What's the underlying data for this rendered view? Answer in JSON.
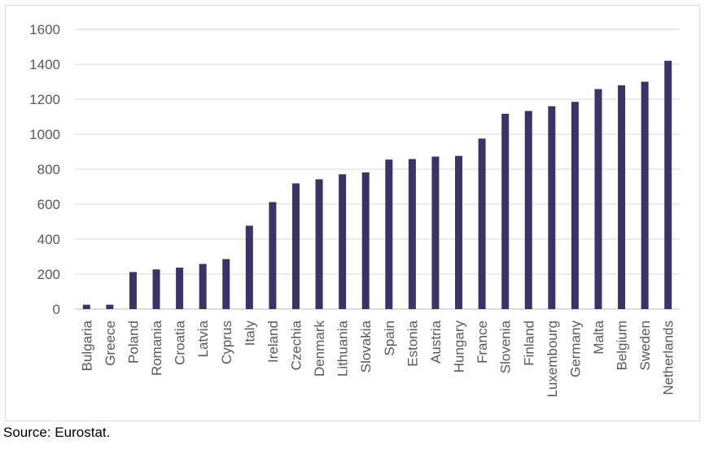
{
  "source_note": "Source: Eurostat.",
  "colors": {
    "bar": "#3b3368",
    "grid": "#d9d9d9",
    "axis": "#bfbfbf",
    "text": "#595959"
  },
  "chart_data": {
    "type": "bar",
    "title": "",
    "xlabel": "",
    "ylabel": "",
    "ylim": [
      0,
      1600
    ],
    "yticks": [
      0,
      200,
      400,
      600,
      800,
      1000,
      1200,
      1400,
      1600
    ],
    "grid": true,
    "legend": "none",
    "categories": [
      "Bulgaria",
      "Greece",
      "Poland",
      "Romania",
      "Croatia",
      "Latvia",
      "Cyprus",
      "Italy",
      "Ireland",
      "Czechia",
      "Denmark",
      "Lithuania",
      "Slovakia",
      "Spain",
      "Estonia",
      "Austria",
      "Hungary",
      "France",
      "Slovenia",
      "Finland",
      "Luxembourg",
      "Germany",
      "Malta",
      "Belgium",
      "Sweden",
      "Netherlands"
    ],
    "values": [
      25,
      25,
      212,
      227,
      237,
      258,
      286,
      477,
      612,
      719,
      742,
      771,
      782,
      855,
      858,
      872,
      876,
      975,
      1117,
      1133,
      1160,
      1185,
      1258,
      1280,
      1300,
      1420
    ]
  }
}
